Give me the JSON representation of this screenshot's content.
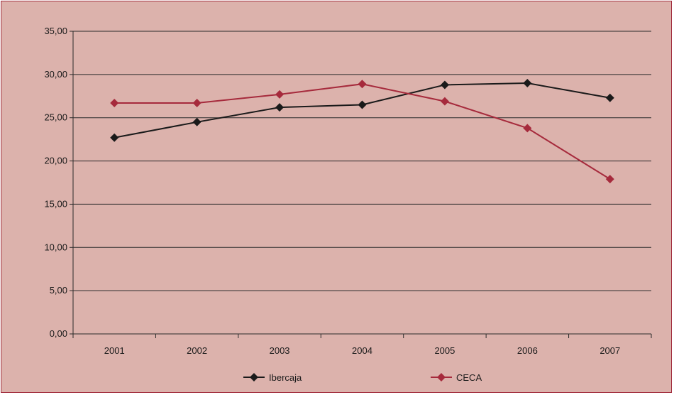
{
  "chart_data": {
    "type": "line",
    "categories": [
      "2001",
      "2002",
      "2003",
      "2004",
      "2005",
      "2006",
      "2007"
    ],
    "y_tick_labels": [
      "0,00",
      "5,00",
      "10,00",
      "15,00",
      "20,00",
      "25,00",
      "30,00",
      "35,00"
    ],
    "ylim": [
      0,
      35
    ],
    "grid": true,
    "legend_position": "bottom",
    "series": [
      {
        "name": "Ibercaja",
        "color": "#1a1a1a",
        "marker": "diamond",
        "values": [
          22.7,
          24.5,
          26.2,
          26.5,
          28.8,
          29.0,
          27.3
        ]
      },
      {
        "name": "CECA",
        "color": "#a62a3c",
        "marker": "diamond",
        "values": [
          26.7,
          26.7,
          27.7,
          28.9,
          26.9,
          23.8,
          17.9
        ]
      }
    ]
  },
  "colors": {
    "background": "#dcb2ac",
    "frame_border": "#a33040",
    "grid": "#2a2a2a"
  }
}
